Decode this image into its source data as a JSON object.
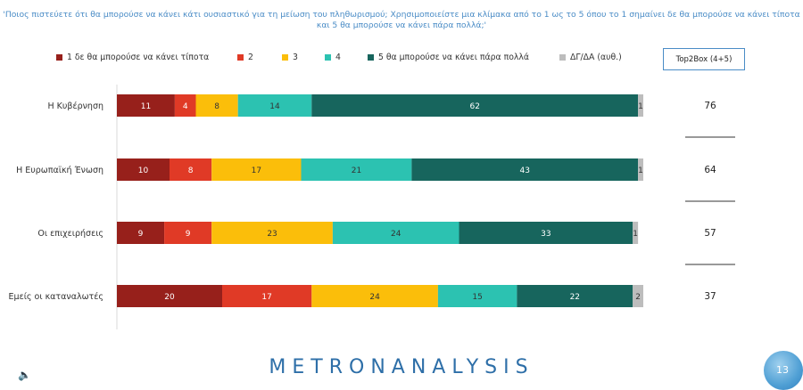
{
  "question": "'Ποιος πιστεύετε ότι θα μπορούσε να κάνει κάτι ουσιαστικό για τη μείωση του πληθωρισμού; Χρησιμοποιείστε μια κλίμακα από το 1 ως το 5 όπου το 1 σημαίνει δε θα μπορούσε να κάνει τίποτα και 5 θα μπορούσε να κάνει πάρα πολλά;'",
  "legend": [
    {
      "label": "1  δε θα μπορούσε να κάνει τίποτα",
      "color": "#97201b"
    },
    {
      "label": "2",
      "color": "#e03a26"
    },
    {
      "label": "3",
      "color": "#fbbe0a"
    },
    {
      "label": "4",
      "color": "#2cc2b1"
    },
    {
      "label": "5 θα μπορούσε να κάνει πάρα πολλά",
      "color": "#17655d"
    },
    {
      "label": "ΔΓ/ΔΑ (αυθ.)",
      "color": "#bdbdbd"
    }
  ],
  "top2box_header": "Top2Box (4+5)",
  "chart_data": {
    "type": "bar",
    "orientation": "horizontal",
    "stacked": true,
    "categories": [
      "Η Κυβέρνηση",
      "Η Ευρωπαϊκή Ένωση",
      "Οι επιχειρήσεις",
      "Εμείς οι καταναλωτές"
    ],
    "series": [
      {
        "name": "1  δε θα μπορούσε να κάνει τίποτα",
        "color": "#97201b",
        "values": [
          11,
          10,
          9,
          20
        ]
      },
      {
        "name": "2",
        "color": "#e03a26",
        "values": [
          4,
          8,
          9,
          17
        ]
      },
      {
        "name": "3",
        "color": "#fbbe0a",
        "values": [
          8,
          17,
          23,
          24
        ]
      },
      {
        "name": "4",
        "color": "#2cc2b1",
        "values": [
          14,
          21,
          24,
          15
        ]
      },
      {
        "name": "5 θα μπορούσε να κάνει πάρα πολλά",
        "color": "#17655d",
        "values": [
          62,
          43,
          33,
          22
        ]
      },
      {
        "name": "ΔΓ/ΔΑ (αυθ.)",
        "color": "#bdbdbd",
        "values": [
          1,
          1,
          1,
          2
        ]
      }
    ],
    "top2box": [
      76,
      64,
      57,
      37
    ],
    "xlim": [
      0,
      100
    ],
    "grid": false,
    "legend_position": "top"
  },
  "brand": "METRONANALYSIS",
  "page_number": "13"
}
